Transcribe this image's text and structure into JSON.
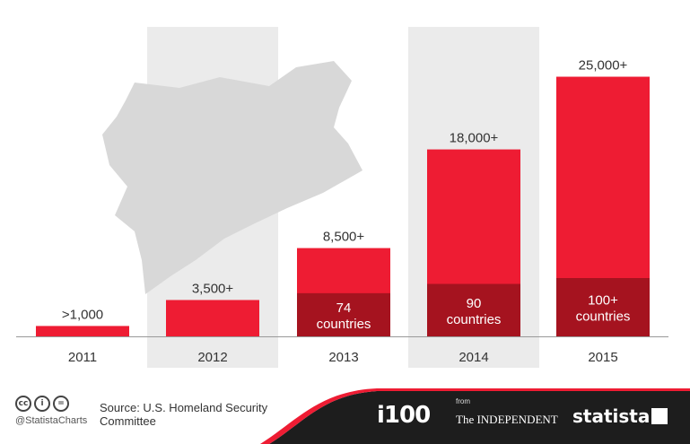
{
  "chart_data": {
    "type": "bar",
    "categories": [
      "2011",
      "2012",
      "2013",
      "2014",
      "2015"
    ],
    "values": [
      1000,
      3500,
      8500,
      18000,
      25000
    ],
    "value_labels": [
      ">1,000",
      "3,500+",
      "8,500+",
      "18,000+",
      "25,000+"
    ],
    "countries": [
      null,
      null,
      74,
      90,
      100
    ],
    "country_labels": [
      "",
      "",
      "74\ncountries",
      "90\ncountries",
      "100+\ncountries"
    ],
    "highlighted_years": [
      "2012",
      "2014"
    ],
    "ylim": [
      0,
      28500
    ],
    "colors": {
      "bar": "#ee1c33",
      "countries_segment": "#a5131f",
      "column_shade": "#ebebeb",
      "map": "#d8d8d8",
      "footer": "#1d1d1d"
    }
  },
  "footer": {
    "handle": "@StatistaCharts",
    "source": "Source: U.S. Homeland Security Committee",
    "logo_i100": "i100",
    "logo_from": "from",
    "logo_independent": "The INDEPENDENT",
    "logo_statista": "statista",
    "cc_icons": [
      "cc-icon",
      "by-icon",
      "nd-icon"
    ]
  }
}
